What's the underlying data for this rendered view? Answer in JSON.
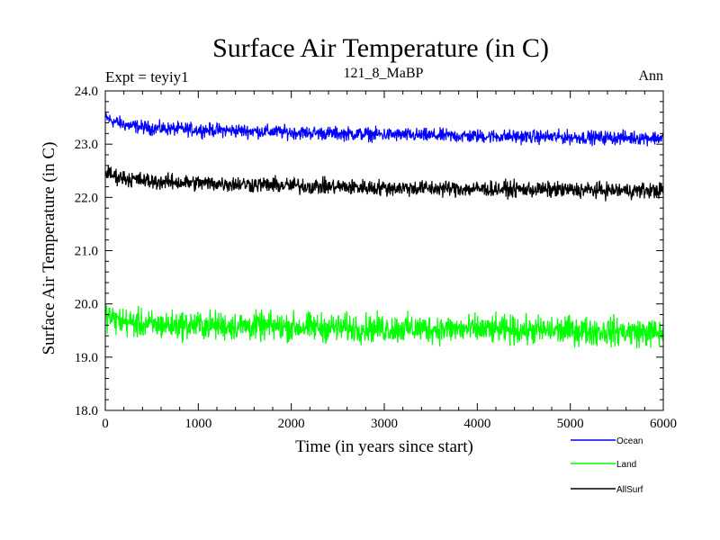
{
  "chart_data": {
    "type": "line",
    "title": "Surface Air Temperature (in C)",
    "subtitle": "121_8_MaBP",
    "annotation_left": "Expt = teyiy1",
    "annotation_right": "Ann",
    "xlabel": "Time (in years since start)",
    "ylabel": "Surface Air Temperature (in C)",
    "xlim": [
      0,
      6000
    ],
    "ylim": [
      18.0,
      24.0
    ],
    "x_ticks": [
      0,
      1000,
      2000,
      3000,
      4000,
      5000,
      6000
    ],
    "x_tick_labels": [
      "0",
      "1000",
      "2000",
      "3000",
      "4000",
      "5000",
      "6000"
    ],
    "y_ticks": [
      18,
      19,
      20,
      21,
      22,
      23,
      24
    ],
    "y_tick_labels": [
      "18.0",
      "19.0",
      "20.0",
      "21.0",
      "22.0",
      "23.0",
      "24.0"
    ],
    "legend_position": "bottom-right, below plot",
    "series": [
      {
        "name": "Ocean",
        "color": "#0000ff",
        "x": [
          0,
          100,
          250,
          500,
          1000,
          1500,
          2000,
          2500,
          3000,
          3500,
          4000,
          4500,
          5000,
          5500,
          6000
        ],
        "values": [
          23.5,
          23.42,
          23.35,
          23.3,
          23.27,
          23.25,
          23.22,
          23.2,
          23.18,
          23.16,
          23.15,
          23.14,
          23.13,
          23.12,
          23.12
        ],
        "noise": 0.12
      },
      {
        "name": "Land",
        "color": "#00ff00",
        "x": [
          0,
          100,
          250,
          500,
          1000,
          1500,
          2000,
          2500,
          3000,
          3500,
          4000,
          4500,
          5000,
          5500,
          6000
        ],
        "values": [
          19.8,
          19.7,
          19.65,
          19.6,
          19.6,
          19.58,
          19.57,
          19.55,
          19.54,
          19.53,
          19.52,
          19.5,
          19.5,
          19.48,
          19.45
        ],
        "noise": 0.25
      },
      {
        "name": "AllSurf",
        "color": "#000000",
        "x": [
          0,
          100,
          250,
          500,
          1000,
          1500,
          2000,
          2500,
          3000,
          3500,
          4000,
          4500,
          5000,
          5500,
          6000
        ],
        "values": [
          22.48,
          22.4,
          22.35,
          22.3,
          22.27,
          22.25,
          22.22,
          22.2,
          22.18,
          22.17,
          22.16,
          22.15,
          22.14,
          22.13,
          22.13
        ],
        "noise": 0.14
      }
    ]
  }
}
